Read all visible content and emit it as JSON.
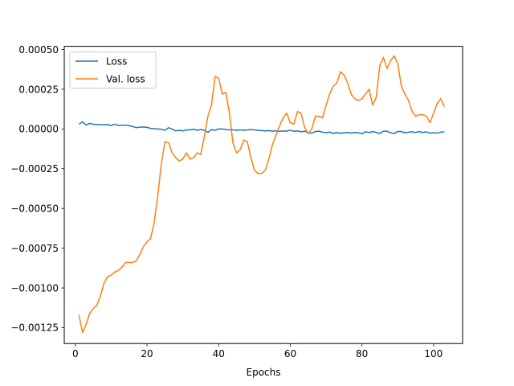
{
  "chart_data": {
    "type": "line",
    "title": "",
    "xlabel": "Epochs",
    "ylabel": "",
    "xlim": [
      -3.1,
      108.1
    ],
    "ylim": [
      -0.00135,
      0.00052
    ],
    "x_ticks": [
      0,
      20,
      40,
      60,
      80,
      100
    ],
    "y_ticks": [
      -0.00125,
      -0.001,
      -0.00075,
      -0.0005,
      -0.00025,
      0,
      0.00025,
      0.0005
    ],
    "x_tick_labels": [
      "0",
      "20",
      "40",
      "60",
      "80",
      "100"
    ],
    "y_tick_labels": [
      "−0.00125",
      "−0.00100",
      "−0.00075",
      "−0.00050",
      "−0.00025",
      "0.00000",
      "0.00025",
      "0.00050"
    ],
    "grid": false,
    "legend_position": "upper left",
    "series": [
      {
        "name": "Loss",
        "color": "#1f77b4",
        "x": [
          1,
          2,
          3,
          4,
          5,
          6,
          7,
          8,
          9,
          10,
          11,
          12,
          13,
          14,
          15,
          16,
          17,
          18,
          19,
          20,
          21,
          22,
          23,
          24,
          25,
          26,
          27,
          28,
          29,
          30,
          31,
          32,
          33,
          34,
          35,
          36,
          37,
          38,
          39,
          40,
          41,
          42,
          43,
          44,
          45,
          46,
          47,
          48,
          49,
          50,
          51,
          52,
          53,
          54,
          55,
          56,
          57,
          58,
          59,
          60,
          61,
          62,
          63,
          64,
          65,
          66,
          67,
          68,
          69,
          70,
          71,
          72,
          73,
          74,
          75,
          76,
          77,
          78,
          79,
          80,
          81,
          82,
          83,
          84,
          85,
          86,
          87,
          88,
          89,
          90,
          91,
          92,
          93,
          94,
          95,
          96,
          97,
          98,
          99,
          100,
          101,
          102,
          103
        ],
        "y": [
          3e-05,
          4.5e-05,
          2.5e-05,
          3.5e-05,
          3e-05,
          2.8e-05,
          2.8e-05,
          2.6e-05,
          2.8e-05,
          2.2e-05,
          3e-05,
          2.2e-05,
          2.4e-05,
          2.4e-05,
          2e-05,
          1.6e-05,
          8e-06,
          1.2e-05,
          1.2e-05,
          1e-05,
          4e-06,
          2e-06,
          0.0,
          -2e-06,
          -8e-06,
          8e-06,
          0.0,
          -1.2e-05,
          -8e-06,
          -1.2e-05,
          -6e-06,
          -6e-06,
          -2e-06,
          -8e-06,
          -4e-06,
          -8e-06,
          -2.2e-05,
          -4e-06,
          -8e-06,
          0.0,
          0.0,
          -4e-06,
          -6e-06,
          -6e-06,
          -8e-06,
          -6e-06,
          -8e-06,
          -6e-06,
          -4e-06,
          -6e-06,
          -8e-06,
          -1e-05,
          -1.2e-05,
          -1e-05,
          -1.4e-05,
          -1.2e-05,
          -1.6e-05,
          -1.2e-05,
          -1.4e-05,
          -8e-06,
          -1.4e-05,
          -1.2e-05,
          -1.8e-05,
          -1.4e-05,
          -2.4e-05,
          -2.6e-05,
          -1.6e-05,
          -1.4e-05,
          -2e-05,
          -2.4e-05,
          -2e-05,
          -2.8e-05,
          -2.2e-05,
          -2.8e-05,
          -2.4e-05,
          -2.2e-05,
          -2.6e-05,
          -2.2e-05,
          -2.4e-05,
          -3e-05,
          -1.8e-05,
          -2.2e-05,
          -1.6e-05,
          -2.2e-05,
          -2.8e-05,
          -1.4e-05,
          -1.4e-05,
          -2.4e-05,
          -2.8e-05,
          -1.6e-05,
          -1.6e-05,
          -2.4e-05,
          -2e-05,
          -1.8e-05,
          -2.2e-05,
          -1.6e-05,
          -2.2e-05,
          -1.8e-05,
          -2.6e-05,
          -2.4e-05,
          -2.6e-05,
          -2e-05,
          -1.8e-05
        ]
      },
      {
        "name": "Val. loss",
        "color": "#ff7f0e",
        "x": [
          1,
          2,
          3,
          4,
          5,
          6,
          7,
          8,
          9,
          10,
          11,
          12,
          13,
          14,
          15,
          16,
          17,
          18,
          19,
          20,
          21,
          22,
          23,
          24,
          25,
          26,
          27,
          28,
          29,
          30,
          31,
          32,
          33,
          34,
          35,
          36,
          37,
          38,
          39,
          40,
          41,
          42,
          43,
          44,
          45,
          46,
          47,
          48,
          49,
          50,
          51,
          52,
          53,
          54,
          55,
          56,
          57,
          58,
          59,
          60,
          61,
          62,
          63,
          64,
          65,
          66,
          67,
          68,
          69,
          70,
          71,
          72,
          73,
          74,
          75,
          76,
          77,
          78,
          79,
          80,
          81,
          82,
          83,
          84,
          85,
          86,
          87,
          88,
          89,
          90,
          91,
          92,
          93,
          94,
          95,
          96,
          97,
          98,
          99,
          100,
          101,
          102,
          103
        ],
        "y": [
          -0.00117,
          -0.00128,
          -0.00123,
          -0.00116,
          -0.00113,
          -0.00111,
          -0.00105,
          -0.00097,
          -0.00093,
          -0.00092,
          -0.0009,
          -0.00089,
          -0.00087,
          -0.00084,
          -0.00084,
          -0.00084,
          -0.00083,
          -0.00079,
          -0.00074,
          -0.00071,
          -0.00069,
          -0.00059,
          -0.00042,
          -0.00022,
          -8e-05,
          -8.5e-05,
          -0.00015,
          -0.00018,
          -0.0002,
          -0.00019,
          -0.00015,
          -0.00019,
          -0.00018,
          -0.00015,
          -0.00016,
          -5e-05,
          8e-05,
          0.00015,
          0.00033,
          0.00032,
          0.00022,
          0.00023,
          0.0001,
          -9e-05,
          -0.00015,
          -0.00013,
          -7e-05,
          -8e-05,
          -0.00018,
          -0.00026,
          -0.00028,
          -0.00028,
          -0.00026,
          -0.00019,
          -0.0001,
          -4e-05,
          2e-05,
          7e-05,
          0.0001,
          4e-05,
          3e-05,
          0.00011,
          0.0001,
          1e-05,
          -3e-05,
          0.0,
          8e-05,
          8e-05,
          7e-05,
          0.00015,
          0.00022,
          0.00027,
          0.00029,
          0.00036,
          0.00034,
          0.00029,
          0.00022,
          0.00019,
          0.00018,
          0.00019,
          0.00022,
          0.00025,
          0.00015,
          0.0002,
          0.0004,
          0.00045,
          0.00038,
          0.00043,
          0.00046,
          0.00041,
          0.00027,
          0.00022,
          0.00018,
          0.00011,
          8e-05,
          9e-05,
          9e-05,
          8e-05,
          4e-05,
          0.0001,
          0.00016,
          0.00019,
          0.00014
        ]
      }
    ]
  }
}
